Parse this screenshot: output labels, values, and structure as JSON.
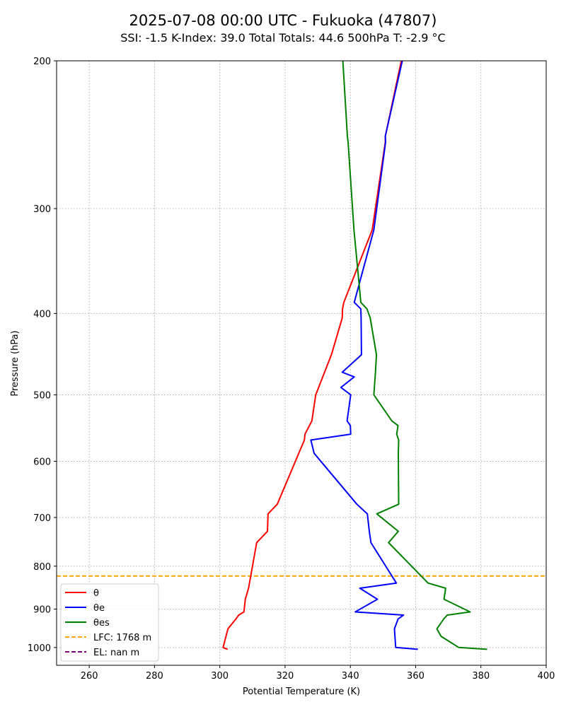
{
  "chart_data": {
    "type": "line",
    "title": "2025-07-08 00:00 UTC - Fukuoka (47807)",
    "subtitle": "SSI: -1.5   K-Index: 39.0   Total Totals: 44.6   500hPa T: -2.9 °C",
    "xlabel": "Potential Temperature (K)",
    "ylabel": "Pressure (hPa)",
    "xlim": [
      250,
      400
    ],
    "ylim": [
      1050,
      200
    ],
    "yscale": "log",
    "grid": true,
    "legend_position": "lower-left",
    "x_ticks": [
      "260",
      "280",
      "300",
      "320",
      "340",
      "360",
      "380",
      "400"
    ],
    "y_ticks": [
      "200",
      "300",
      "400",
      "500",
      "600",
      "700",
      "800",
      "900",
      "1000"
    ],
    "series": [
      {
        "name": "θ",
        "color": "#ff0000",
        "p": [
          1005,
          1000,
          950,
          925,
          915,
          907,
          876,
          850,
          750,
          727,
          693,
          675,
          566,
          557,
          537,
          500,
          448,
          405,
          395,
          388,
          318,
          250,
          246,
          200
        ],
        "x": [
          302.4,
          301.0,
          302.5,
          304.9,
          305.8,
          307.4,
          307.8,
          308.8,
          311.3,
          314.6,
          314.8,
          317.6,
          325.9,
          326.1,
          328.2,
          329.4,
          334.2,
          337.5,
          337.6,
          338.0,
          346.7,
          350.7,
          350.7,
          355.6
        ]
      },
      {
        "name": "θe",
        "color": "#0000ff",
        "p": [
          1005,
          1000,
          950,
          925,
          915,
          907,
          876,
          850,
          838,
          750,
          727,
          693,
          675,
          587,
          566,
          557,
          544,
          537,
          500,
          490,
          476,
          470,
          448,
          405,
          395,
          388,
          318,
          250,
          246,
          200
        ],
        "x": [
          360.7,
          353.9,
          353.5,
          354.6,
          356.3,
          341.5,
          348.3,
          342.9,
          354.1,
          346.3,
          345.8,
          345.2,
          342.0,
          328.9,
          327.9,
          340.1,
          340.0,
          339.0,
          340.1,
          337.1,
          341.2,
          337.5,
          343.4,
          343.3,
          343.2,
          341.2,
          347.2,
          350.8,
          350.7,
          355.9
        ]
      },
      {
        "name": "θes",
        "color": "#008000",
        "p": [
          1005,
          1000,
          970,
          950,
          925,
          915,
          907,
          876,
          850,
          838,
          750,
          727,
          693,
          675,
          587,
          566,
          557,
          544,
          537,
          500,
          470,
          448,
          405,
          395,
          388,
          318,
          250,
          246,
          200
        ],
        "x": [
          381.9,
          373.2,
          367.8,
          366.5,
          368.6,
          369.7,
          376.7,
          368.7,
          369.2,
          363.8,
          351.7,
          354.7,
          348.1,
          354.8,
          354.7,
          354.8,
          354.2,
          354.6,
          352.7,
          347.2,
          347.7,
          348.0,
          346.1,
          345.1,
          343.2,
          341.1,
          339.3,
          339.1,
          337.7
        ]
      }
    ],
    "reference_lines": [
      {
        "name": "LFC: 1768 m",
        "color": "#ffa500",
        "p": 822
      },
      {
        "name": "EL: nan m",
        "color": "#800080",
        "p": null
      }
    ]
  }
}
